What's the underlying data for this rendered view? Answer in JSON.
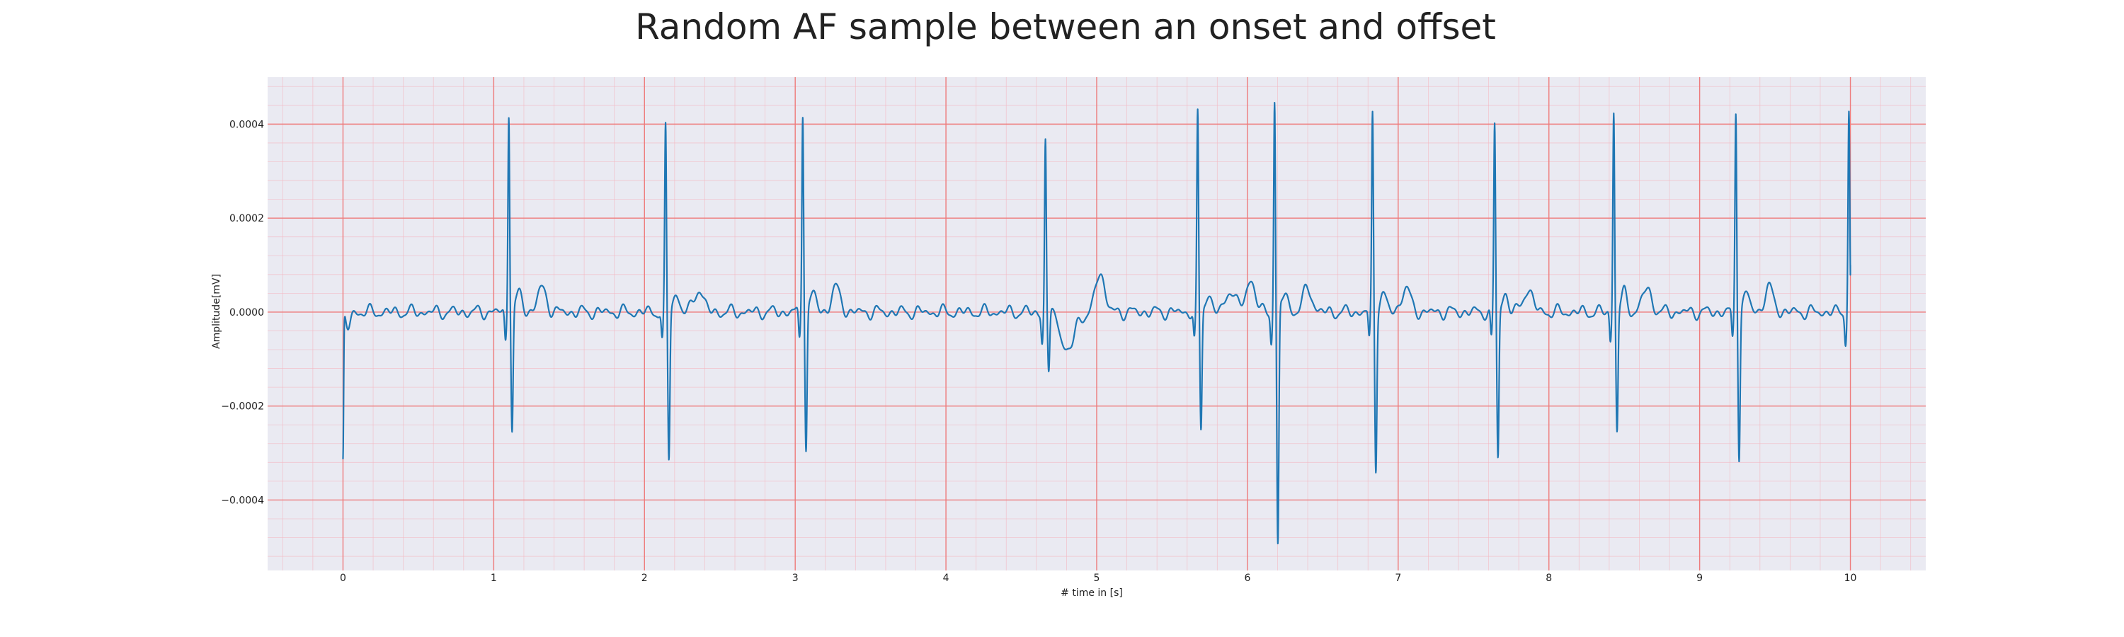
{
  "chart_data": {
    "type": "line",
    "title": "Random AF sample between an onset and offset",
    "xlabel": "# time in [s]",
    "ylabel": "Amplitude[mV]",
    "xlim": [
      -0.5,
      10.5
    ],
    "ylim": [
      -0.00055,
      0.0005
    ],
    "x_ticks": [
      0,
      1,
      2,
      3,
      4,
      5,
      6,
      7,
      8,
      9,
      10
    ],
    "x_tick_labels": [
      "0",
      "1",
      "2",
      "3",
      "4",
      "5",
      "6",
      "7",
      "8",
      "9",
      "10"
    ],
    "y_ticks": [
      -0.0004,
      -0.0002,
      0.0,
      0.0002,
      0.0004
    ],
    "y_tick_labels": [
      "−0.0004",
      "−0.0002",
      "0.0000",
      "0.0002",
      "0.0004"
    ],
    "grid": {
      "major": true,
      "minor": true
    },
    "colors": {
      "background": "#eaeaf2",
      "major_grid": "#ee7b7b",
      "minor_grid": "#f4b7c0",
      "line": "#1f77b4"
    },
    "series": [
      {
        "beats": [
          {
            "t": 1.1,
            "r": 0.00043,
            "s": -0.000255
          },
          {
            "t": 2.14,
            "r": 0.00039,
            "s": -0.000315
          },
          {
            "t": 3.05,
            "r": 0.00043,
            "s": -0.00029
          },
          {
            "t": 4.66,
            "r": 0.000375,
            "s": -0.000125
          },
          {
            "t": 5.67,
            "r": 0.00042,
            "s": -0.000255
          },
          {
            "t": 6.18,
            "r": 0.000455,
            "s": -0.000505
          },
          {
            "t": 6.83,
            "r": 0.00042,
            "s": -0.00033
          },
          {
            "t": 7.64,
            "r": 0.0004,
            "s": -0.000315
          },
          {
            "t": 8.43,
            "r": 0.00043,
            "s": -0.000255
          },
          {
            "t": 9.24,
            "r": 0.00043,
            "s": -0.000305
          },
          {
            "t": 9.99,
            "r": 0.00043,
            "s": -6e-05
          }
        ],
        "start": {
          "t": 0.0,
          "y": -0.000315
        },
        "end": {
          "t": 10.0,
          "y": 0.0001
        }
      }
    ]
  }
}
